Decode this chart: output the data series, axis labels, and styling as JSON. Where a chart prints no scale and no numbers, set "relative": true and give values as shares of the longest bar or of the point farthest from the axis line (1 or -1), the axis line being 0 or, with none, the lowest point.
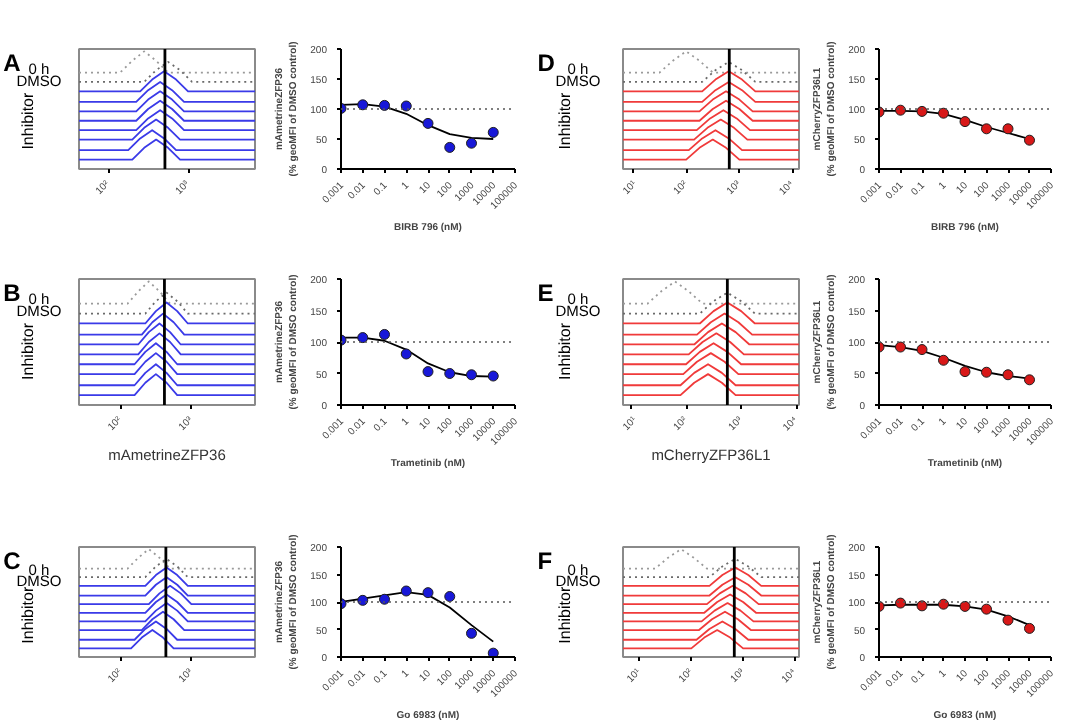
{
  "chart_data": [
    {
      "type": "line",
      "title": "A",
      "relative": true,
      "log": "x",
      "xlim": [
        43,
        6900
      ],
      "xticks": [
        {
          "value": 100,
          "label": "10²"
        },
        {
          "value": 1000,
          "label": "10³"
        }
      ],
      "annotations": [
        "0 h",
        "DMSO",
        "Inhibitor"
      ],
      "ref_lines": [
        {
          "axis": "x",
          "value": 513,
          "color": "#000000"
        }
      ],
      "series": [
        {
          "color": "#9a9a9a",
          "line_style": "dotted",
          "x": [
            43,
            141,
            200,
            282,
            398,
            562,
            6900
          ],
          "values": [
            0.82,
            0.82,
            0.92,
            1.0,
            0.92,
            0.82,
            0.82
          ]
        },
        {
          "color": "#6a6a6a",
          "line_style": "dotted",
          "x": [
            43,
            282,
            398,
            562,
            794,
            1122,
            6900
          ],
          "values": [
            0.74,
            0.74,
            0.84,
            0.91,
            0.84,
            0.74,
            0.74
          ]
        },
        {
          "color": "#3a3ae8",
          "x": [
            43,
            251,
            355,
            501,
            708,
            1000,
            6900
          ],
          "values": [
            0.66,
            0.66,
            0.76,
            0.83,
            0.76,
            0.66,
            0.66
          ]
        },
        {
          "color": "#3a3ae8",
          "x": [
            43,
            224,
            316,
            447,
            631,
            891,
            6900
          ],
          "values": [
            0.57,
            0.57,
            0.67,
            0.74,
            0.67,
            0.57,
            0.57
          ]
        },
        {
          "color": "#3a3ae8",
          "x": [
            43,
            224,
            316,
            447,
            631,
            891,
            6900
          ],
          "values": [
            0.49,
            0.49,
            0.59,
            0.66,
            0.59,
            0.49,
            0.49
          ]
        },
        {
          "color": "#3a3ae8",
          "x": [
            43,
            224,
            316,
            447,
            631,
            891,
            6900
          ],
          "values": [
            0.41,
            0.41,
            0.51,
            0.58,
            0.51,
            0.41,
            0.41
          ]
        },
        {
          "color": "#3a3ae8",
          "x": [
            43,
            224,
            316,
            447,
            631,
            891,
            6900
          ],
          "values": [
            0.33,
            0.33,
            0.43,
            0.5,
            0.43,
            0.33,
            0.33
          ]
        },
        {
          "color": "#3a3ae8",
          "x": [
            43,
            200,
            282,
            398,
            562,
            794,
            6900
          ],
          "values": [
            0.25,
            0.25,
            0.35,
            0.42,
            0.35,
            0.25,
            0.25
          ]
        },
        {
          "color": "#3a3ae8",
          "x": [
            43,
            178,
            251,
            355,
            501,
            708,
            6900
          ],
          "values": [
            0.16,
            0.16,
            0.26,
            0.33,
            0.26,
            0.16,
            0.16
          ]
        },
        {
          "color": "#3a3ae8",
          "x": [
            43,
            200,
            282,
            398,
            562,
            794,
            6900
          ],
          "values": [
            0.08,
            0.08,
            0.18,
            0.25,
            0.18,
            0.08,
            0.08
          ]
        }
      ]
    },
    {
      "type": "scatter",
      "log": "x",
      "xlim": [
        0.001,
        100000
      ],
      "xticks": [
        0.001,
        0.01,
        0.1,
        1,
        10,
        100,
        1000,
        10000,
        100000
      ],
      "ylim": [
        0,
        200
      ],
      "yticks": [
        0,
        50,
        100,
        150,
        200
      ],
      "xlabel": "BIRB 796 (nM)",
      "ylabel": "mAmetrineZFP36\n(% geoMFI of DMSO control)",
      "ref_lines": [
        {
          "axis": "y",
          "value": 100,
          "color": "#555555",
          "line_style": "dotted"
        }
      ],
      "series": [
        {
          "type": "line",
          "marker": "none",
          "color": "#000000",
          "x": [
            0.001,
            0.01,
            0.1,
            1,
            10,
            100,
            1000,
            10000
          ],
          "values": [
            107,
            108,
            104,
            92,
            73,
            58,
            52,
            50
          ]
        },
        {
          "type": "scatter",
          "marker": "circle",
          "color": "#1818d8",
          "x": [
            0.001,
            0.01,
            0.1,
            1,
            10,
            100,
            1000,
            10000
          ],
          "values": [
            101,
            107,
            106,
            105,
            76,
            36,
            43,
            61
          ]
        }
      ]
    },
    {
      "type": "line",
      "title": "D",
      "relative": true,
      "log": "x",
      "xlim": [
        6.5,
        13200
      ],
      "xticks": [
        {
          "value": 10,
          "label": "10¹"
        },
        {
          "value": 100,
          "label": "10²"
        },
        {
          "value": 1000,
          "label": "10³"
        },
        {
          "value": 10000,
          "label": "10⁴"
        }
      ],
      "annotations": [
        "0 h",
        "DMSO",
        "Inhibitor"
      ],
      "ref_lines": [
        {
          "axis": "x",
          "value": 646,
          "color": "#000000"
        }
      ],
      "series": [
        {
          "color": "#9a9a9a",
          "line_style": "dotted",
          "x": [
            6.5,
            31.6,
            56.2,
            100,
            178,
            316,
            13200
          ],
          "values": [
            0.82,
            0.82,
            0.92,
            1.0,
            0.92,
            0.82,
            0.82
          ]
        },
        {
          "color": "#6a6a6a",
          "line_style": "dotted",
          "x": [
            6.5,
            200,
            355,
            631,
            1122,
            1995,
            13200
          ],
          "values": [
            0.74,
            0.74,
            0.84,
            0.91,
            0.84,
            0.74,
            0.74
          ]
        },
        {
          "color": "#f03a3a",
          "x": [
            6.5,
            200,
            355,
            631,
            1122,
            1995,
            13200
          ],
          "values": [
            0.66,
            0.66,
            0.76,
            0.83,
            0.76,
            0.66,
            0.66
          ]
        },
        {
          "color": "#f03a3a",
          "x": [
            6.5,
            200,
            355,
            631,
            1122,
            1995,
            13200
          ],
          "values": [
            0.57,
            0.57,
            0.67,
            0.74,
            0.67,
            0.57,
            0.57
          ]
        },
        {
          "color": "#f03a3a",
          "x": [
            6.5,
            178,
            316,
            562,
            1000,
            1778,
            13200
          ],
          "values": [
            0.49,
            0.49,
            0.59,
            0.66,
            0.59,
            0.49,
            0.49
          ]
        },
        {
          "color": "#f03a3a",
          "x": [
            6.5,
            178,
            316,
            562,
            1000,
            1778,
            13200
          ],
          "values": [
            0.41,
            0.41,
            0.51,
            0.58,
            0.51,
            0.41,
            0.41
          ]
        },
        {
          "color": "#f03a3a",
          "x": [
            6.5,
            158,
            282,
            501,
            891,
            1585,
            13200
          ],
          "values": [
            0.33,
            0.33,
            0.43,
            0.5,
            0.43,
            0.33,
            0.33
          ]
        },
        {
          "color": "#f03a3a",
          "x": [
            6.5,
            141,
            251,
            447,
            794,
            1413,
            13200
          ],
          "values": [
            0.25,
            0.25,
            0.35,
            0.42,
            0.35,
            0.25,
            0.25
          ]
        },
        {
          "color": "#f03a3a",
          "x": [
            6.5,
            112,
            200,
            355,
            631,
            1122,
            13200
          ],
          "values": [
            0.16,
            0.16,
            0.26,
            0.33,
            0.26,
            0.16,
            0.16
          ]
        },
        {
          "color": "#f03a3a",
          "x": [
            6.5,
            100,
            178,
            316,
            562,
            1000,
            13200
          ],
          "values": [
            0.08,
            0.08,
            0.18,
            0.25,
            0.18,
            0.08,
            0.08
          ]
        }
      ]
    },
    {
      "type": "scatter",
      "log": "x",
      "xlim": [
        0.001,
        100000
      ],
      "xticks": [
        0.001,
        0.01,
        0.1,
        1,
        10,
        100,
        1000,
        10000,
        100000
      ],
      "ylim": [
        0,
        200
      ],
      "yticks": [
        0,
        50,
        100,
        150,
        200
      ],
      "xlabel": "BIRB 796 (nM)",
      "ylabel": "mCherryZFP36L1\n(% geoMFI of DMSO control)",
      "ref_lines": [
        {
          "axis": "y",
          "value": 100,
          "color": "#555555",
          "line_style": "dotted"
        }
      ],
      "series": [
        {
          "type": "line",
          "marker": "none",
          "color": "#000000",
          "x": [
            0.001,
            0.01,
            0.1,
            1,
            10,
            100,
            1000,
            10000
          ],
          "values": [
            97,
            97,
            96,
            92,
            82,
            70,
            60,
            50
          ]
        },
        {
          "type": "scatter",
          "marker": "circle",
          "color": "#d81818",
          "x": [
            0.001,
            0.01,
            0.1,
            1,
            10,
            100,
            1000,
            10000
          ],
          "values": [
            95,
            98,
            96,
            93,
            79,
            67,
            67,
            48
          ]
        }
      ]
    },
    {
      "type": "line",
      "title": "B",
      "relative": true,
      "log": "x",
      "xlim": [
        26,
        7900
      ],
      "xticks": [
        {
          "value": 100,
          "label": "10²"
        },
        {
          "value": 1000,
          "label": "10³"
        }
      ],
      "xlabel": "mAmetrineZFP36",
      "annotations": [
        "0 h",
        "DMSO",
        "Inhibitor"
      ],
      "ref_lines": [
        {
          "axis": "x",
          "value": 417,
          "color": "#000000"
        }
      ],
      "series": [
        {
          "color": "#9a9a9a",
          "line_style": "dotted",
          "x": [
            26,
            126,
            178,
            251,
            355,
            501,
            7900
          ],
          "values": [
            0.82,
            0.82,
            0.92,
            1.0,
            0.92,
            0.82,
            0.82
          ]
        },
        {
          "color": "#6a6a6a",
          "line_style": "dotted",
          "x": [
            26,
            224,
            316,
            447,
            631,
            891,
            7900
          ],
          "values": [
            0.74,
            0.74,
            0.84,
            0.91,
            0.84,
            0.74,
            0.74
          ]
        },
        {
          "color": "#3a3ae8",
          "x": [
            26,
            224,
            316,
            447,
            631,
            891,
            7900
          ],
          "values": [
            0.66,
            0.66,
            0.76,
            0.83,
            0.76,
            0.66,
            0.66
          ]
        },
        {
          "color": "#3a3ae8",
          "x": [
            26,
            200,
            282,
            398,
            562,
            794,
            7900
          ],
          "values": [
            0.57,
            0.57,
            0.67,
            0.74,
            0.67,
            0.57,
            0.57
          ]
        },
        {
          "color": "#3a3ae8",
          "x": [
            26,
            178,
            251,
            355,
            501,
            708,
            7900
          ],
          "values": [
            0.49,
            0.49,
            0.59,
            0.66,
            0.59,
            0.49,
            0.49
          ]
        },
        {
          "color": "#3a3ae8",
          "x": [
            26,
            178,
            251,
            355,
            501,
            708,
            7900
          ],
          "values": [
            0.41,
            0.41,
            0.51,
            0.58,
            0.51,
            0.41,
            0.41
          ]
        },
        {
          "color": "#3a3ae8",
          "x": [
            26,
            158,
            224,
            316,
            447,
            631,
            7900
          ],
          "values": [
            0.33,
            0.33,
            0.43,
            0.5,
            0.43,
            0.33,
            0.33
          ]
        },
        {
          "color": "#3a3ae8",
          "x": [
            26,
            158,
            224,
            316,
            447,
            631,
            7900
          ],
          "values": [
            0.25,
            0.25,
            0.35,
            0.42,
            0.35,
            0.25,
            0.25
          ]
        },
        {
          "color": "#3a3ae8",
          "x": [
            26,
            158,
            224,
            316,
            447,
            631,
            7900
          ],
          "values": [
            0.16,
            0.16,
            0.26,
            0.33,
            0.26,
            0.16,
            0.16
          ]
        },
        {
          "color": "#3a3ae8",
          "x": [
            26,
            158,
            224,
            316,
            447,
            631,
            7900
          ],
          "values": [
            0.08,
            0.08,
            0.18,
            0.25,
            0.18,
            0.08,
            0.08
          ]
        }
      ]
    },
    {
      "type": "scatter",
      "log": "x",
      "xlim": [
        0.001,
        100000
      ],
      "xticks": [
        0.001,
        0.01,
        0.1,
        1,
        10,
        100,
        1000,
        10000,
        100000
      ],
      "ylim": [
        0,
        200
      ],
      "yticks": [
        0,
        50,
        100,
        150,
        200
      ],
      "xlabel": "Trametinib (nM)",
      "ylabel": "mAmetrineZFP36\n(% geoMFI of DMSO control)",
      "ref_lines": [
        {
          "axis": "y",
          "value": 100,
          "color": "#555555",
          "line_style": "dotted"
        }
      ],
      "series": [
        {
          "type": "line",
          "marker": "none",
          "color": "#000000",
          "x": [
            0.001,
            0.01,
            0.1,
            1,
            10,
            100,
            1000,
            10000
          ],
          "values": [
            107,
            107,
            102,
            88,
            66,
            52,
            46,
            45
          ]
        },
        {
          "type": "scatter",
          "marker": "circle",
          "color": "#1818d8",
          "x": [
            0.001,
            0.01,
            0.1,
            1,
            10,
            100,
            1000,
            10000
          ],
          "values": [
            103,
            107,
            112,
            81,
            53,
            50,
            48,
            46
          ]
        }
      ]
    },
    {
      "type": "line",
      "title": "E",
      "relative": true,
      "log": "x",
      "xlim": [
        7.2,
        11200
      ],
      "xticks": [
        {
          "value": 10,
          "label": "10¹"
        },
        {
          "value": 100,
          "label": "10²"
        },
        {
          "value": 1000,
          "label": "10³"
        },
        {
          "value": 10000,
          "label": "10⁴"
        }
      ],
      "xlabel": "mCherryZFP36L1",
      "annotations": [
        "0 h",
        "DMSO",
        "Inhibitor"
      ],
      "ref_lines": [
        {
          "axis": "x",
          "value": 562,
          "color": "#000000"
        }
      ],
      "series": [
        {
          "color": "#9a9a9a",
          "line_style": "dotted",
          "x": [
            7.2,
            20,
            35.5,
            63.1,
            112,
            200,
            11200
          ],
          "values": [
            0.82,
            0.82,
            0.92,
            1.0,
            0.92,
            0.82,
            0.82
          ]
        },
        {
          "color": "#6a6a6a",
          "line_style": "dotted",
          "x": [
            7.2,
            178,
            316,
            562,
            1000,
            1778,
            11200
          ],
          "values": [
            0.74,
            0.74,
            0.84,
            0.91,
            0.84,
            0.74,
            0.74
          ]
        },
        {
          "color": "#f03a3a",
          "x": [
            7.2,
            178,
            316,
            562,
            1000,
            1778,
            11200
          ],
          "values": [
            0.66,
            0.66,
            0.76,
            0.83,
            0.76,
            0.66,
            0.66
          ]
        },
        {
          "color": "#f03a3a",
          "x": [
            7.2,
            158,
            282,
            501,
            891,
            1585,
            11200
          ],
          "values": [
            0.57,
            0.57,
            0.67,
            0.74,
            0.67,
            0.57,
            0.57
          ]
        },
        {
          "color": "#f03a3a",
          "x": [
            7.2,
            141,
            251,
            447,
            794,
            1413,
            11200
          ],
          "values": [
            0.49,
            0.49,
            0.59,
            0.66,
            0.59,
            0.49,
            0.49
          ]
        },
        {
          "color": "#f03a3a",
          "x": [
            7.2,
            112,
            200,
            355,
            631,
            1122,
            11200
          ],
          "values": [
            0.41,
            0.41,
            0.51,
            0.58,
            0.51,
            0.41,
            0.41
          ]
        },
        {
          "color": "#f03a3a",
          "x": [
            7.2,
            100,
            178,
            316,
            562,
            1000,
            11200
          ],
          "values": [
            0.33,
            0.33,
            0.43,
            0.5,
            0.43,
            0.33,
            0.33
          ]
        },
        {
          "color": "#f03a3a",
          "x": [
            7.2,
            89.1,
            158,
            282,
            501,
            891,
            11200
          ],
          "values": [
            0.25,
            0.25,
            0.35,
            0.42,
            0.35,
            0.25,
            0.25
          ]
        },
        {
          "color": "#f03a3a",
          "x": [
            7.2,
            79.4,
            141,
            251,
            447,
            794,
            11200
          ],
          "values": [
            0.16,
            0.16,
            0.26,
            0.33,
            0.26,
            0.16,
            0.16
          ]
        },
        {
          "color": "#f03a3a",
          "x": [
            7.2,
            79.4,
            141,
            251,
            447,
            794,
            11200
          ],
          "values": [
            0.08,
            0.08,
            0.18,
            0.25,
            0.18,
            0.08,
            0.08
          ]
        }
      ]
    },
    {
      "type": "scatter",
      "log": "x",
      "xlim": [
        0.001,
        100000
      ],
      "xticks": [
        0.001,
        0.01,
        0.1,
        1,
        10,
        100,
        1000,
        10000,
        100000
      ],
      "ylim": [
        0,
        200
      ],
      "yticks": [
        0,
        50,
        100,
        150,
        200
      ],
      "xlabel": "Trametinib (nM)",
      "ylabel": "mCherryZFP36L1\n(% geoMFI of DMSO control)",
      "ref_lines": [
        {
          "axis": "y",
          "value": 100,
          "color": "#555555",
          "line_style": "dotted"
        }
      ],
      "series": [
        {
          "type": "line",
          "marker": "none",
          "color": "#000000",
          "x": [
            0.001,
            0.01,
            0.1,
            1,
            10,
            100,
            1000,
            10000
          ],
          "values": [
            95,
            92,
            86,
            75,
            62,
            52,
            46,
            42
          ]
        },
        {
          "type": "scatter",
          "marker": "circle",
          "color": "#d81818",
          "x": [
            0.001,
            0.01,
            0.1,
            1,
            10,
            100,
            1000,
            10000
          ],
          "values": [
            92,
            92,
            88,
            71,
            53,
            52,
            48,
            40
          ]
        }
      ]
    },
    {
      "type": "line",
      "title": "C",
      "relative": true,
      "log": "x",
      "xlim": [
        26,
        7900
      ],
      "xticks": [
        {
          "value": 100,
          "label": "10²"
        },
        {
          "value": 1000,
          "label": "10³"
        }
      ],
      "annotations": [
        "0 h",
        "DMSO",
        "Inhibitor"
      ],
      "ref_lines": [
        {
          "axis": "x",
          "value": 437,
          "color": "#000000"
        }
      ],
      "series": [
        {
          "color": "#9a9a9a",
          "line_style": "dotted",
          "x": [
            26,
            126,
            178,
            251,
            355,
            501,
            7900
          ],
          "values": [
            0.82,
            0.82,
            0.92,
            1.0,
            0.92,
            0.82,
            0.82
          ]
        },
        {
          "color": "#6a6a6a",
          "line_style": "dotted",
          "x": [
            26,
            224,
            316,
            447,
            631,
            891,
            7900
          ],
          "values": [
            0.74,
            0.74,
            0.84,
            0.91,
            0.84,
            0.74,
            0.74
          ]
        },
        {
          "color": "#3a3ae8",
          "x": [
            26,
            224,
            316,
            447,
            631,
            891,
            7900
          ],
          "values": [
            0.66,
            0.66,
            0.76,
            0.83,
            0.76,
            0.66,
            0.66
          ]
        },
        {
          "color": "#3a3ae8",
          "x": [
            26,
            224,
            316,
            447,
            631,
            891,
            7900
          ],
          "values": [
            0.57,
            0.57,
            0.67,
            0.74,
            0.67,
            0.57,
            0.57
          ]
        },
        {
          "color": "#3a3ae8",
          "x": [
            26,
            251,
            355,
            501,
            708,
            1000,
            7900
          ],
          "values": [
            0.49,
            0.49,
            0.59,
            0.66,
            0.59,
            0.49,
            0.49
          ]
        },
        {
          "color": "#3a3ae8",
          "x": [
            26,
            224,
            316,
            447,
            631,
            891,
            7900
          ],
          "values": [
            0.41,
            0.41,
            0.51,
            0.58,
            0.51,
            0.41,
            0.41
          ]
        },
        {
          "color": "#3a3ae8",
          "x": [
            26,
            224,
            316,
            447,
            631,
            891,
            7900
          ],
          "values": [
            0.33,
            0.33,
            0.43,
            0.5,
            0.43,
            0.33,
            0.33
          ]
        },
        {
          "color": "#3a3ae8",
          "x": [
            26,
            200,
            282,
            398,
            562,
            794,
            7900
          ],
          "values": [
            0.25,
            0.25,
            0.35,
            0.42,
            0.35,
            0.25,
            0.25
          ]
        },
        {
          "color": "#3a3ae8",
          "x": [
            26,
            158,
            224,
            316,
            447,
            631,
            7900
          ],
          "values": [
            0.16,
            0.16,
            0.26,
            0.33,
            0.26,
            0.16,
            0.16
          ]
        },
        {
          "color": "#3a3ae8",
          "x": [
            26,
            141,
            200,
            282,
            398,
            562,
            7900
          ],
          "values": [
            0.08,
            0.08,
            0.18,
            0.25,
            0.18,
            0.08,
            0.08
          ]
        }
      ]
    },
    {
      "type": "scatter",
      "log": "x",
      "xlim": [
        0.001,
        100000
      ],
      "xticks": [
        0.001,
        0.01,
        0.1,
        1,
        10,
        100,
        1000,
        10000,
        100000
      ],
      "ylim": [
        0,
        200
      ],
      "yticks": [
        0,
        50,
        100,
        150,
        200
      ],
      "xlabel": "Go 6983 (nM)",
      "ylabel": "mAmetrineZFP36\n(% geoMFI of DMSO control)",
      "ref_lines": [
        {
          "axis": "y",
          "value": 100,
          "color": "#555555",
          "line_style": "dotted"
        }
      ],
      "series": [
        {
          "type": "line",
          "marker": "none",
          "color": "#000000",
          "x": [
            0.001,
            0.01,
            0.1,
            1,
            10,
            100,
            1000,
            10000
          ],
          "values": [
            100,
            106,
            112,
            118,
            113,
            90,
            58,
            28
          ]
        },
        {
          "type": "scatter",
          "marker": "circle",
          "color": "#1818d8",
          "x": [
            0.001,
            0.01,
            0.1,
            1,
            10,
            100,
            1000,
            10000
          ],
          "values": [
            97,
            103,
            105,
            120,
            117,
            110,
            43,
            7
          ]
        }
      ]
    },
    {
      "type": "line",
      "title": "F",
      "relative": true,
      "log": "x",
      "xlim": [
        4.8,
        12000
      ],
      "xticks": [
        {
          "value": 10,
          "label": "10¹"
        },
        {
          "value": 100,
          "label": "10²"
        },
        {
          "value": 1000,
          "label": "10³"
        },
        {
          "value": 10000,
          "label": "10⁴"
        }
      ],
      "annotations": [
        "0 h",
        "DMSO",
        "Inhibitor"
      ],
      "ref_lines": [
        {
          "axis": "x",
          "value": 676,
          "color": "#000000"
        }
      ],
      "series": [
        {
          "color": "#9a9a9a",
          "line_style": "dotted",
          "x": [
            4.8,
            20,
            35.5,
            63.1,
            112,
            200,
            12000
          ],
          "values": [
            0.82,
            0.82,
            0.92,
            1.0,
            0.92,
            0.82,
            0.82
          ]
        },
        {
          "color": "#6a6a6a",
          "line_style": "dotted",
          "x": [
            4.8,
            224,
            398,
            708,
            1259,
            2239,
            12000
          ],
          "values": [
            0.74,
            0.74,
            0.84,
            0.91,
            0.84,
            0.74,
            0.74
          ]
        },
        {
          "color": "#f03a3a",
          "x": [
            4.8,
            224,
            398,
            708,
            1259,
            2239,
            12000
          ],
          "values": [
            0.66,
            0.66,
            0.76,
            0.83,
            0.76,
            0.66,
            0.66
          ]
        },
        {
          "color": "#f03a3a",
          "x": [
            4.8,
            224,
            398,
            708,
            1259,
            2239,
            12000
          ],
          "values": [
            0.57,
            0.57,
            0.67,
            0.74,
            0.67,
            0.57,
            0.57
          ]
        },
        {
          "color": "#f03a3a",
          "x": [
            4.8,
            200,
            355,
            631,
            1122,
            1995,
            12000
          ],
          "values": [
            0.49,
            0.49,
            0.59,
            0.66,
            0.59,
            0.49,
            0.49
          ]
        },
        {
          "color": "#f03a3a",
          "x": [
            4.8,
            178,
            316,
            562,
            1000,
            1778,
            12000
          ],
          "values": [
            0.41,
            0.41,
            0.51,
            0.58,
            0.51,
            0.41,
            0.41
          ]
        },
        {
          "color": "#f03a3a",
          "x": [
            4.8,
            158,
            282,
            501,
            891,
            1585,
            12000
          ],
          "values": [
            0.33,
            0.33,
            0.43,
            0.5,
            0.43,
            0.33,
            0.33
          ]
        },
        {
          "color": "#f03a3a",
          "x": [
            4.8,
            141,
            251,
            447,
            794,
            1413,
            12000
          ],
          "values": [
            0.25,
            0.25,
            0.35,
            0.42,
            0.35,
            0.25,
            0.25
          ]
        },
        {
          "color": "#f03a3a",
          "x": [
            4.8,
            126,
            224,
            398,
            708,
            1259,
            12000
          ],
          "values": [
            0.16,
            0.16,
            0.26,
            0.33,
            0.26,
            0.16,
            0.16
          ]
        },
        {
          "color": "#f03a3a",
          "x": [
            4.8,
            100,
            178,
            316,
            562,
            1000,
            12000
          ],
          "values": [
            0.08,
            0.08,
            0.18,
            0.25,
            0.18,
            0.08,
            0.08
          ]
        }
      ]
    },
    {
      "type": "scatter",
      "log": "x",
      "xlim": [
        0.001,
        100000
      ],
      "xticks": [
        0.001,
        0.01,
        0.1,
        1,
        10,
        100,
        1000,
        10000,
        100000
      ],
      "ylim": [
        0,
        200
      ],
      "yticks": [
        0,
        50,
        100,
        150,
        200
      ],
      "xlabel": "Go 6983 (nM)",
      "ylabel": "mCherryZFP36L1\n(% geoMFI of DMSO control)",
      "ref_lines": [
        {
          "axis": "y",
          "value": 100,
          "color": "#555555",
          "line_style": "dotted"
        }
      ],
      "series": [
        {
          "type": "line",
          "marker": "none",
          "color": "#000000",
          "x": [
            0.001,
            0.01,
            0.1,
            1,
            10,
            100,
            1000,
            10000
          ],
          "values": [
            94,
            95,
            95,
            95,
            92,
            86,
            74,
            58
          ]
        },
        {
          "type": "scatter",
          "marker": "circle",
          "color": "#d81818",
          "x": [
            0.001,
            0.01,
            0.1,
            1,
            10,
            100,
            1000,
            10000
          ],
          "values": [
            92,
            98,
            93,
            96,
            92,
            87,
            67,
            52
          ]
        }
      ]
    }
  ]
}
